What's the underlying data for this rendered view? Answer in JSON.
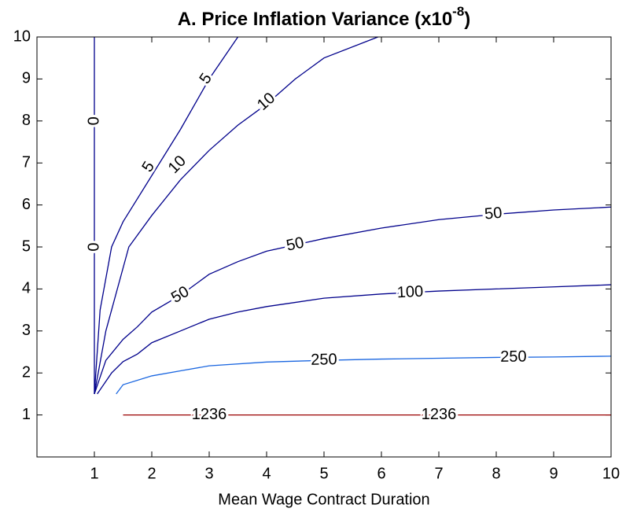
{
  "chart_data": {
    "type": "contour",
    "title": {
      "text": "A. Price Inflation Variance (x10",
      "superscript": "-8",
      "suffix": ")"
    },
    "xlabel": "Mean Wage Contract Duration",
    "xlim": [
      0,
      10
    ],
    "ylim": [
      0,
      10
    ],
    "xticks": [
      1,
      2,
      3,
      4,
      5,
      6,
      7,
      8,
      9,
      10
    ],
    "yticks": [
      1,
      2,
      3,
      4,
      5,
      6,
      7,
      8,
      9,
      10
    ],
    "contours": [
      {
        "level": 0,
        "color": "#00008b",
        "x": [
          1,
          1
        ],
        "y": [
          1.5,
          10
        ],
        "labels": [
          [
            1,
            8
          ],
          [
            1,
            5
          ]
        ]
      },
      {
        "level": 5,
        "color": "#00008b",
        "x": [
          1,
          1.1,
          1.3,
          1.5,
          2,
          2.5,
          3,
          3.5
        ],
        "y": [
          1.5,
          3.5,
          5,
          5.6,
          6.7,
          7.8,
          9,
          10
        ],
        "labels": [
          [
            2.95,
            9
          ],
          [
            1.95,
            6.9
          ]
        ]
      },
      {
        "level": 10,
        "color": "#00008b",
        "x": [
          1,
          1.2,
          1.6,
          2,
          2.5,
          3,
          3.5,
          4,
          4.5,
          5,
          5.94
        ],
        "y": [
          1.5,
          3,
          5,
          5.75,
          6.6,
          7.3,
          7.9,
          8.4,
          9,
          9.5,
          10
        ],
        "labels": [
          [
            4,
            8.45
          ],
          [
            2.45,
            6.95
          ]
        ]
      },
      {
        "level": 50,
        "color": "#00008b",
        "x": [
          1,
          1.2,
          1.5,
          1.75,
          2,
          2.5,
          3,
          3.5,
          4,
          5,
          6,
          7,
          8,
          9,
          10
        ],
        "y": [
          1.5,
          2.3,
          2.8,
          3.1,
          3.45,
          3.85,
          4.35,
          4.65,
          4.9,
          5.2,
          5.45,
          5.65,
          5.78,
          5.88,
          5.95
        ],
        "labels": [
          [
            7.95,
            5.78
          ],
          [
            4.5,
            5.05
          ],
          [
            2.5,
            3.85
          ]
        ]
      },
      {
        "level": 100,
        "color": "#00008b",
        "x": [
          1.05,
          1.3,
          1.5,
          1.75,
          2,
          2.5,
          3,
          3.5,
          4,
          5,
          6,
          7,
          8,
          9,
          10
        ],
        "y": [
          1.5,
          2,
          2.27,
          2.45,
          2.72,
          3,
          3.28,
          3.45,
          3.58,
          3.78,
          3.88,
          3.95,
          4,
          4.05,
          4.1
        ],
        "labels": [
          [
            6.5,
            3.91
          ]
        ]
      },
      {
        "level": 250,
        "color": "#1a66e0",
        "x": [
          1.38,
          1.5,
          2,
          2.5,
          3,
          4,
          5,
          6,
          7,
          8,
          9,
          10
        ],
        "y": [
          1.5,
          1.72,
          1.93,
          2.05,
          2.17,
          2.26,
          2.3,
          2.33,
          2.35,
          2.37,
          2.38,
          2.4
        ],
        "labels": [
          [
            5,
            2.3
          ],
          [
            8.3,
            2.37
          ]
        ]
      },
      {
        "level": 1236,
        "color": "#990000",
        "x": [
          1.5,
          10
        ],
        "y": [
          1,
          1
        ],
        "labels": [
          [
            3,
            1
          ],
          [
            7,
            1
          ]
        ]
      }
    ]
  }
}
